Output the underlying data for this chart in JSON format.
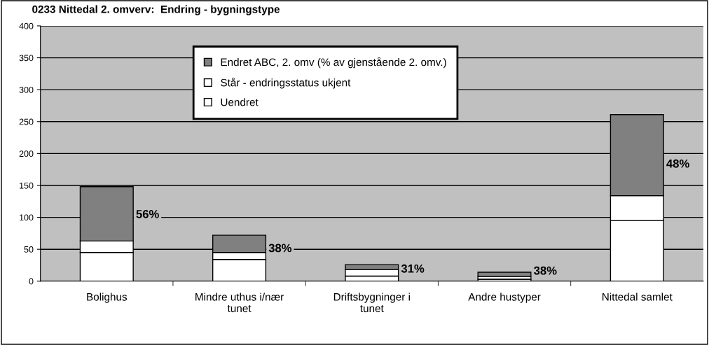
{
  "chart_data": {
    "type": "bar",
    "title": "0233 Nittedal 2. omverv:  Endring - bygningstype",
    "categories": [
      "Bolighus",
      "Mindre uthus i/nær\ntunet",
      "Driftsbygninger i\ntunet",
      "Andre hustyper",
      "Nittedal samlet"
    ],
    "stacked": true,
    "series": [
      {
        "name": "Uendret",
        "color": "#ffffff",
        "values": [
          45,
          34,
          8,
          3,
          95
        ]
      },
      {
        "name": "Står - endringsstatus ukjent",
        "color": "#ffffff",
        "values": [
          18,
          11,
          10,
          4,
          39
        ]
      },
      {
        "name": "Endret ABC, 2. omv (% av gjenstående 2. omv.)",
        "color": "#808080",
        "values": [
          85,
          27,
          8,
          7,
          127
        ]
      }
    ],
    "annotations": [
      "56%",
      "38%",
      "31%",
      "38%",
      "48%"
    ],
    "ylim": [
      0,
      400
    ],
    "yticks": [
      0,
      50,
      100,
      150,
      200,
      250,
      300,
      350,
      400
    ],
    "grid": "y",
    "legend": "top"
  }
}
